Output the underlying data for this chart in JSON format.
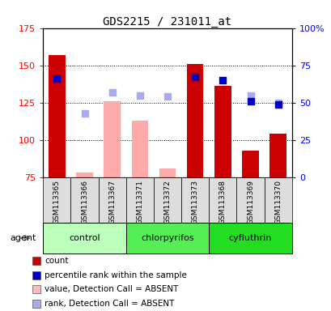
{
  "title": "GDS2215 / 231011_at",
  "samples": [
    "GSM113365",
    "GSM113366",
    "GSM113367",
    "GSM113371",
    "GSM113372",
    "GSM113373",
    "GSM113368",
    "GSM113369",
    "GSM113370"
  ],
  "groups": [
    {
      "name": "control",
      "color": "#bbffbb",
      "samples": [
        0,
        1,
        2
      ]
    },
    {
      "name": "chlorpyrifos",
      "color": "#44ee44",
      "samples": [
        3,
        4,
        5
      ]
    },
    {
      "name": "cyfluthrin",
      "color": "#22cc22",
      "samples": [
        6,
        7,
        8
      ]
    }
  ],
  "count_present": [
    157,
    null,
    null,
    null,
    null,
    151,
    136,
    93,
    104
  ],
  "count_absent": [
    null,
    78,
    126,
    113,
    81,
    null,
    null,
    null,
    null
  ],
  "rank_present": [
    134,
    null,
    null,
    null,
    null,
    138,
    134,
    null,
    null
  ],
  "rank_absent": [
    null,
    118,
    132,
    130,
    129,
    null,
    null,
    130,
    125
  ],
  "percentile_present": [
    66,
    null,
    null,
    null,
    null,
    67,
    65,
    51,
    49
  ],
  "ylim_left": [
    75,
    175
  ],
  "ylim_right": [
    0,
    100
  ],
  "yticks_left": [
    75,
    100,
    125,
    150,
    175
  ],
  "yticks_right": [
    0,
    25,
    50,
    75,
    100
  ],
  "bar_color_present": "#cc0000",
  "bar_color_absent": "#ffaaaa",
  "rank_color_absent": "#aaaaee",
  "percentile_color_present": "#0000cc",
  "legend": [
    {
      "color": "#cc0000",
      "label": "count"
    },
    {
      "color": "#0000cc",
      "label": "percentile rank within the sample"
    },
    {
      "color": "#ffbbbb",
      "label": "value, Detection Call = ABSENT"
    },
    {
      "color": "#aaaaee",
      "label": "rank, Detection Call = ABSENT"
    }
  ]
}
